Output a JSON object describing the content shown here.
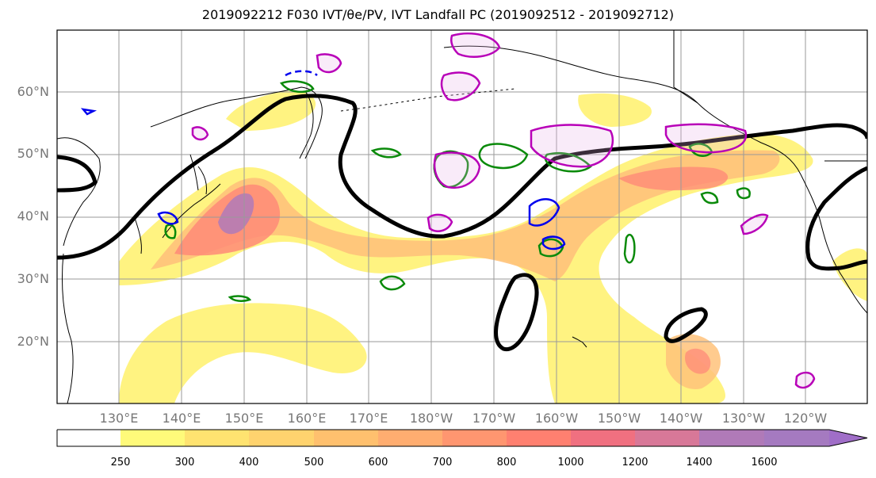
{
  "title": "2019092212 F030 IVT/θe/PV, IVT Landfall PC (2019092512 - 2019092712)",
  "lat_labels": [
    "60°N",
    "50°N",
    "40°N",
    "30°N",
    "20°N"
  ],
  "lon_labels": [
    "130°E",
    "140°E",
    "150°E",
    "160°E",
    "170°E",
    "180°W",
    "170°W",
    "160°W",
    "150°W",
    "140°W",
    "130°W",
    "120°W"
  ],
  "colorbar": {
    "ticks": [
      "250",
      "300",
      "400",
      "500",
      "600",
      "700",
      "800",
      "1000",
      "1200",
      "1400",
      "1600"
    ],
    "colors": [
      "#ffffff",
      "#fffa7a",
      "#ffe370",
      "#ffd36e",
      "#ffc06e",
      "#ffad70",
      "#ff9670",
      "#ff8070",
      "#f07080",
      "#d87898",
      "#b07ab8",
      "#a57ac0",
      "#a06ec8"
    ]
  },
  "colors": {
    "ivt_low": "#fff27a",
    "ivt_mid": "#ffc27a",
    "ivt_high": "#ff8a78",
    "ivt_core": "#b07ab8",
    "pv_contour": "#000000",
    "theta_e_green": "#0a8a0a",
    "pc_magenta": "#b800b8",
    "blue_contour": "#0000ee",
    "grid": "#9a9a9a",
    "coast": "#000000"
  }
}
